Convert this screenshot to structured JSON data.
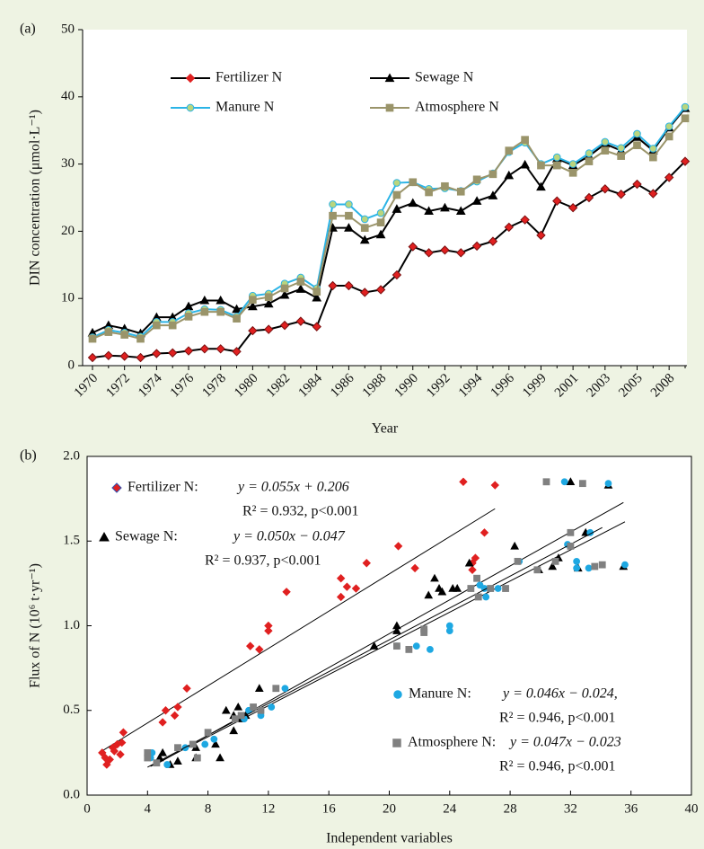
{
  "chart_data": [
    {
      "type": "line",
      "panel_label": "(a)",
      "x_label": "Year",
      "y_label": "DIN concentration (μmol·L⁻¹)",
      "categories": [
        1970,
        null,
        1972,
        null,
        1974,
        null,
        1976,
        null,
        1978,
        null,
        1980,
        null,
        1982,
        null,
        1984,
        null,
        1986,
        null,
        1988,
        null,
        1990,
        null,
        1992,
        null,
        1994,
        null,
        1996,
        null,
        1999,
        null,
        2001,
        null,
        2003,
        null,
        2005,
        null,
        2008,
        null
      ],
      "ylim": [
        0,
        50
      ],
      "yticks": [
        0,
        10,
        20,
        30,
        40,
        50
      ],
      "series": [
        {
          "name": "Fertilizer N",
          "color": "#000000",
          "marker": "diamond",
          "marker_color": "#e02020",
          "values": [
            1.2,
            1.5,
            1.4,
            1.2,
            1.8,
            1.9,
            2.2,
            2.5,
            2.5,
            2.1,
            5.2,
            5.4,
            6.0,
            6.6,
            5.8,
            11.9,
            11.9,
            10.9,
            11.3,
            13.5,
            17.7,
            16.8,
            17.2,
            16.8,
            17.8,
            18.5,
            20.6,
            21.7,
            19.4,
            24.5,
            23.5,
            25.0,
            26.3,
            25.5,
            27.0,
            25.6,
            28.0,
            30.4
          ]
        },
        {
          "name": "Sewage N",
          "color": "#000000",
          "marker": "triangle",
          "marker_color": "#000000",
          "values": [
            4.9,
            6.0,
            5.5,
            4.8,
            7.2,
            7.2,
            8.8,
            9.7,
            9.7,
            8.4,
            8.8,
            9.2,
            10.5,
            11.4,
            10.1,
            20.5,
            20.5,
            18.7,
            19.5,
            23.3,
            24.2,
            23.0,
            23.5,
            23.0,
            24.5,
            25.3,
            28.3,
            29.9,
            26.6,
            30.8,
            29.8,
            31.2,
            33.0,
            32.0,
            34.0,
            32.0,
            35.4,
            38.3
          ]
        },
        {
          "name": "Manure N",
          "color": "#2bb4e6",
          "marker": "circle",
          "marker_color": "#b9d57e",
          "values": [
            4.2,
            5.3,
            4.9,
            4.3,
            6.5,
            6.5,
            7.8,
            8.4,
            8.3,
            7.3,
            10.4,
            10.7,
            12.2,
            13.1,
            11.5,
            24.0,
            24.0,
            21.8,
            22.7,
            27.2,
            27.3,
            26.3,
            26.4,
            26.0,
            27.4,
            28.6,
            31.8,
            33.2,
            30.0,
            31.0,
            30.0,
            31.6,
            33.3,
            32.4,
            34.5,
            32.3,
            35.6,
            38.5
          ]
        },
        {
          "name": "Atmosphere N",
          "color": "#9a946a",
          "marker": "square",
          "marker_color": "#9a946a",
          "values": [
            4.0,
            5.0,
            4.6,
            4.0,
            6.0,
            6.0,
            7.3,
            8.0,
            8.0,
            7.0,
            9.8,
            10.2,
            11.5,
            12.5,
            11.0,
            22.3,
            22.3,
            20.5,
            21.3,
            25.4,
            27.3,
            25.8,
            26.7,
            25.9,
            27.7,
            28.5,
            32.0,
            33.6,
            29.8,
            29.8,
            28.7,
            30.4,
            32.0,
            31.2,
            32.8,
            31.0,
            34.1,
            36.8
          ]
        }
      ]
    },
    {
      "type": "scatter",
      "panel_label": "(b)",
      "x_label": "Independent variables",
      "y_label": "Flux of N (10⁶ t·yr⁻¹)",
      "xlim": [
        0,
        40
      ],
      "xticks": [
        0,
        4,
        8,
        12,
        16,
        20,
        24,
        28,
        32,
        36,
        40
      ],
      "ylim": [
        0,
        2
      ],
      "yticks": [
        {
          "value": 0,
          "label": "0.0"
        },
        {
          "value": 0.5,
          "label": "0.5"
        },
        {
          "value": 1,
          "label": "1.0"
        },
        {
          "value": 1.5,
          "label": "1.5"
        },
        {
          "value": 2,
          "label": "2.0"
        }
      ],
      "series": [
        {
          "name": "Fertilizer N:",
          "color": "#e02020",
          "marker": "diamond",
          "equation": "y = 0.055x + 0.206",
          "stats": "R² = 0.932, p<0.001",
          "slope": 0.055,
          "intercept": 0.206,
          "x": [
            1.0,
            1.2,
            1.3,
            1.5,
            1.7,
            1.8,
            2.0,
            2.2,
            2.4,
            2.3,
            5.0,
            5.2,
            5.8,
            6.0,
            6.6,
            10.8,
            11.4,
            12.0,
            12.0,
            13.2,
            16.8,
            16.8,
            17.2,
            17.8,
            18.5,
            20.6,
            21.7,
            24.9,
            25.5,
            25.7,
            26.3,
            27.0,
            25.5
          ],
          "values": [
            0.25,
            0.22,
            0.18,
            0.21,
            0.28,
            0.26,
            0.3,
            0.24,
            0.37,
            0.31,
            0.43,
            0.5,
            0.47,
            0.52,
            0.63,
            0.88,
            0.86,
            0.97,
            1.0,
            1.2,
            1.17,
            1.28,
            1.23,
            1.22,
            1.37,
            1.47,
            1.34,
            1.85,
            1.37,
            1.4,
            1.55,
            1.83,
            1.33
          ]
        },
        {
          "name": "Sewage N:",
          "color": "#000000",
          "marker": "triangle",
          "equation": "y = 0.050x − 0.047",
          "stats": "R² = 0.937, p<0.001",
          "slope": 0.05,
          "intercept": -0.047,
          "x": [
            4.8,
            5.0,
            5.5,
            6.0,
            7.2,
            7.2,
            8.5,
            8.8,
            9.2,
            9.7,
            9.7,
            10.0,
            10.5,
            11.4,
            10.1,
            19.0,
            20.5,
            20.5,
            22.6,
            23.0,
            23.3,
            23.5,
            24.2,
            24.5,
            25.3,
            28.3,
            29.9,
            30.8,
            31.2,
            32.0,
            33.0,
            32.5,
            34.5,
            35.5
          ],
          "values": [
            0.22,
            0.25,
            0.18,
            0.2,
            0.28,
            0.22,
            0.3,
            0.22,
            0.5,
            0.47,
            0.38,
            0.52,
            0.47,
            0.63,
            0.45,
            0.88,
            0.97,
            1.0,
            1.18,
            1.28,
            1.22,
            1.2,
            1.22,
            1.22,
            1.37,
            1.47,
            1.33,
            1.35,
            1.4,
            1.85,
            1.55,
            1.34,
            1.83,
            1.35
          ]
        },
        {
          "name": "Manure N:",
          "color": "#1ea8e2",
          "marker": "circle",
          "equation": "y = 0.046x − 0.024,",
          "stats": "R² = 0.946, p<0.001",
          "slope": 0.046,
          "intercept": -0.024,
          "x": [
            4.2,
            4.3,
            5.3,
            6.5,
            7.8,
            8.4,
            10.4,
            10.7,
            11.5,
            12.2,
            13.1,
            20.5,
            21.8,
            22.7,
            24.0,
            24.0,
            26.0,
            26.3,
            26.4,
            27.2,
            28.6,
            31.6,
            31.8,
            32.4,
            32.4,
            33.2,
            34.5,
            35.6,
            33.3
          ],
          "values": [
            0.22,
            0.25,
            0.18,
            0.28,
            0.3,
            0.33,
            0.45,
            0.5,
            0.47,
            0.52,
            0.63,
            0.88,
            0.88,
            0.86,
            0.97,
            1.0,
            1.24,
            1.22,
            1.17,
            1.22,
            1.38,
            1.85,
            1.48,
            1.38,
            1.34,
            1.34,
            1.84,
            1.36,
            1.55
          ]
        },
        {
          "name": "Atmosphere N:",
          "color": "#808080",
          "marker": "square",
          "equation": "y = 0.047x − 0.023",
          "stats": "R² = 0.946, p<0.001",
          "slope": 0.047,
          "intercept": -0.023,
          "x": [
            4.0,
            4.0,
            4.6,
            6.0,
            7.0,
            7.3,
            8.0,
            9.8,
            10.2,
            11.0,
            11.5,
            12.5,
            20.5,
            21.3,
            22.3,
            22.3,
            25.4,
            25.8,
            25.9,
            26.7,
            27.7,
            28.5,
            30.4,
            31.0,
            32.0,
            32.0,
            32.8,
            33.6,
            34.1,
            29.8
          ],
          "values": [
            0.25,
            0.22,
            0.19,
            0.28,
            0.3,
            0.22,
            0.37,
            0.45,
            0.47,
            0.52,
            0.5,
            0.63,
            0.88,
            0.86,
            0.98,
            0.96,
            1.22,
            1.28,
            1.17,
            1.22,
            1.22,
            1.38,
            1.85,
            1.38,
            1.55,
            1.47,
            1.84,
            1.35,
            1.36,
            1.33
          ]
        }
      ]
    }
  ]
}
